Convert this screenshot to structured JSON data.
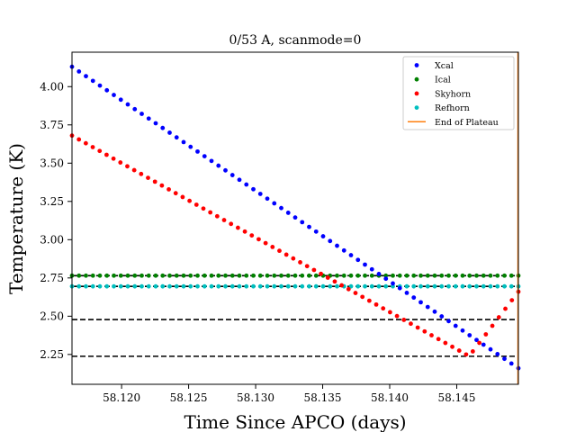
{
  "chart_data": {
    "type": "scatter",
    "title": "0/53 A, scanmode=0",
    "xlabel": "Time Since APCO (days)",
    "ylabel": "Temperature (K)",
    "xlim": [
      58.1163,
      58.1496
    ],
    "ylim": [
      2.055,
      4.225
    ],
    "x_ticks": [
      "58.120",
      "58.125",
      "58.130",
      "58.135",
      "58.140",
      "58.145"
    ],
    "y_ticks": [
      "2.25",
      "2.50",
      "2.75",
      "3.00",
      "3.25",
      "3.50",
      "3.75",
      "4.00"
    ],
    "legend_position": "upper right",
    "series": [
      {
        "name": "Xcal",
        "color": "#0000ff",
        "marker": "dot",
        "x_start": 58.1163,
        "x_end": 58.1496,
        "count": 65,
        "y_start": 4.13,
        "y_end": 2.16
      },
      {
        "name": "Ical",
        "color": "#008000",
        "marker": "dot",
        "x_start": 58.1163,
        "x_end": 58.1496,
        "count": 65,
        "y_const": 2.765
      },
      {
        "name": "Skyhorn",
        "color": "#ff0000",
        "marker": "dot",
        "segments": [
          {
            "x_start": 58.1163,
            "x_end": 58.1457,
            "count": 58,
            "y_start": 3.68,
            "y_end": 2.25
          },
          {
            "x_start": 58.1462,
            "x_end": 58.1496,
            "count": 8,
            "y_start": 2.27,
            "y_end": 2.66
          }
        ]
      },
      {
        "name": "Refhorn",
        "color": "#00bfbf",
        "marker": "dot",
        "x_start": 58.1163,
        "x_end": 58.1496,
        "count": 65,
        "y_const": 2.695
      },
      {
        "name": "End of Plateau",
        "color": "#ff7f0e",
        "marker": "line",
        "x": 58.1496
      }
    ],
    "reference_lines": [
      {
        "y": 2.765,
        "color": "#000000",
        "style": "dashed"
      },
      {
        "y": 2.695,
        "color": "#000000",
        "style": "dashed"
      },
      {
        "y": 2.478,
        "color": "#000000",
        "style": "dashed"
      },
      {
        "y": 2.238,
        "color": "#000000",
        "style": "dashed"
      }
    ]
  }
}
